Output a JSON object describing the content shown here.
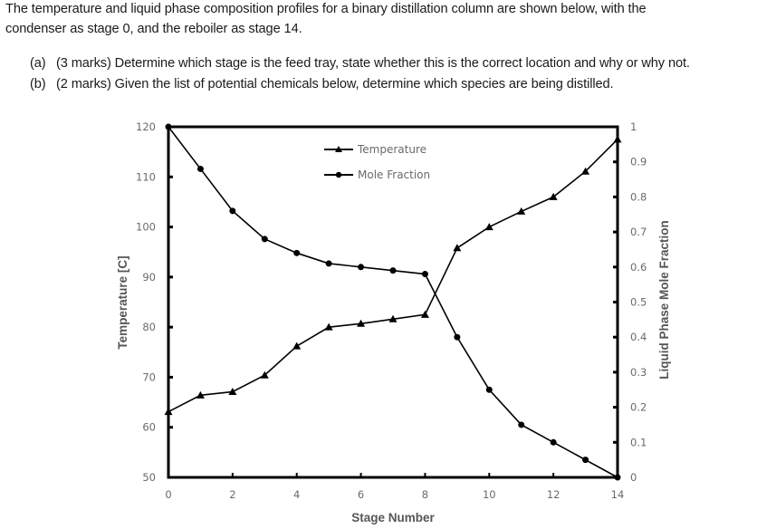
{
  "document": {
    "intro_lines": [
      "The temperature and liquid phase composition profiles for a binary distillation column are shown below, with the",
      "condenser as stage 0, and the reboiler as stage 14."
    ],
    "questions": [
      {
        "label": "(a)",
        "text": "(3 marks) Determine which stage is the feed tray, state whether this is the correct location and why or why not."
      },
      {
        "label": "(b)",
        "text": "(2 marks) Given the list of potential chemicals below, determine which species are being distilled."
      }
    ]
  },
  "chart_data": {
    "type": "line",
    "title": "",
    "xlabel": "Stage Number",
    "ylabel": "Temperature [C]",
    "ylabel_right": "Liquid Phase Mole Fraction",
    "x": [
      0,
      1,
      2,
      3,
      4,
      5,
      6,
      7,
      8,
      9,
      10,
      11,
      12,
      13,
      14
    ],
    "xlim": [
      0,
      14
    ],
    "xticks": [
      "0",
      "2",
      "4",
      "6",
      "8",
      "10",
      "12",
      "14"
    ],
    "ylim": [
      50,
      120
    ],
    "yticks": [
      "50",
      "60",
      "70",
      "80",
      "90",
      "100",
      "110",
      "120"
    ],
    "ylim_right": [
      0,
      1
    ],
    "yticks_right": [
      "0",
      "0.1",
      "0.2",
      "0.3",
      "0.4",
      "0.5",
      "0.6",
      "0.7",
      "0.8",
      "0.9",
      "1"
    ],
    "grid": false,
    "legend_position": "upper center (inside plot)",
    "series": [
      {
        "name": "Temperature",
        "axis": "left",
        "marker": "triangle",
        "color": "#000000",
        "values": [
          63.1,
          66.4,
          67.1,
          70.4,
          76.2,
          80.0,
          80.7,
          81.6,
          82.5,
          95.8,
          100.0,
          103.1,
          106.0,
          111.1,
          117.5
        ]
      },
      {
        "name": "Mole Fraction",
        "axis": "right",
        "marker": "circle",
        "color": "#000000",
        "values": [
          1.0,
          0.88,
          0.76,
          0.68,
          0.64,
          0.61,
          0.6,
          0.59,
          0.58,
          0.4,
          0.25,
          0.15,
          0.1,
          0.05,
          0.0
        ]
      }
    ]
  }
}
